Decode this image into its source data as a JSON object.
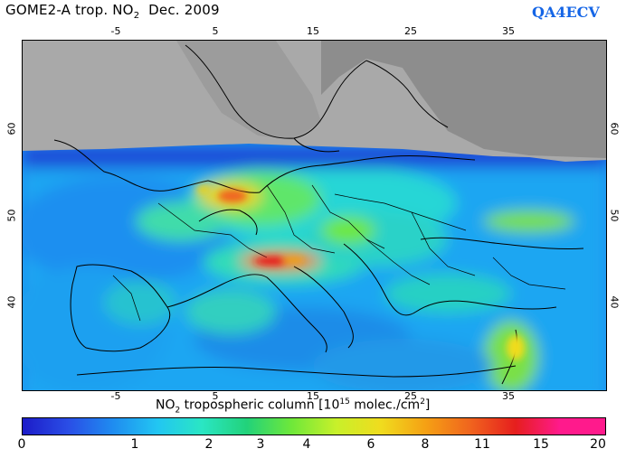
{
  "header": {
    "title_pre": "GOME2-A trop. NO",
    "title_sub": "2",
    "title_post": "  Dec. 2009",
    "brand": "QA4ECV"
  },
  "map": {
    "longitude_ticks_top": [
      "-5",
      "5",
      "15",
      "25",
      "35"
    ],
    "longitude_ticks_bottom": [
      "-5",
      "5",
      "15",
      "25",
      "35"
    ],
    "latitude_ticks_left": [
      "60",
      "50",
      "40"
    ],
    "latitude_ticks_right": [
      "60",
      "50",
      "40"
    ],
    "no_data_color": "#a9a9a9",
    "sea_land_color": "#8a8a8a"
  },
  "colorbar": {
    "title_pre": "NO",
    "title_sub": "2",
    "title_mid": " tropospheric column [10",
    "title_sup": "15",
    "title_post": " molec./cm",
    "title_sup2": "2",
    "title_end": "]",
    "labels": [
      "0",
      "1",
      "2",
      "3",
      "4",
      "6",
      "8",
      "11",
      "15",
      "20"
    ],
    "colors": [
      "#1c1cc8",
      "#2a4de6",
      "#1f8bf0",
      "#22c6f2",
      "#2ae6c4",
      "#22d27a",
      "#6ee83a",
      "#c8f02a",
      "#f0dc1e",
      "#f5a014",
      "#f0641e",
      "#e61e1e",
      "#ff1a8c"
    ]
  }
}
